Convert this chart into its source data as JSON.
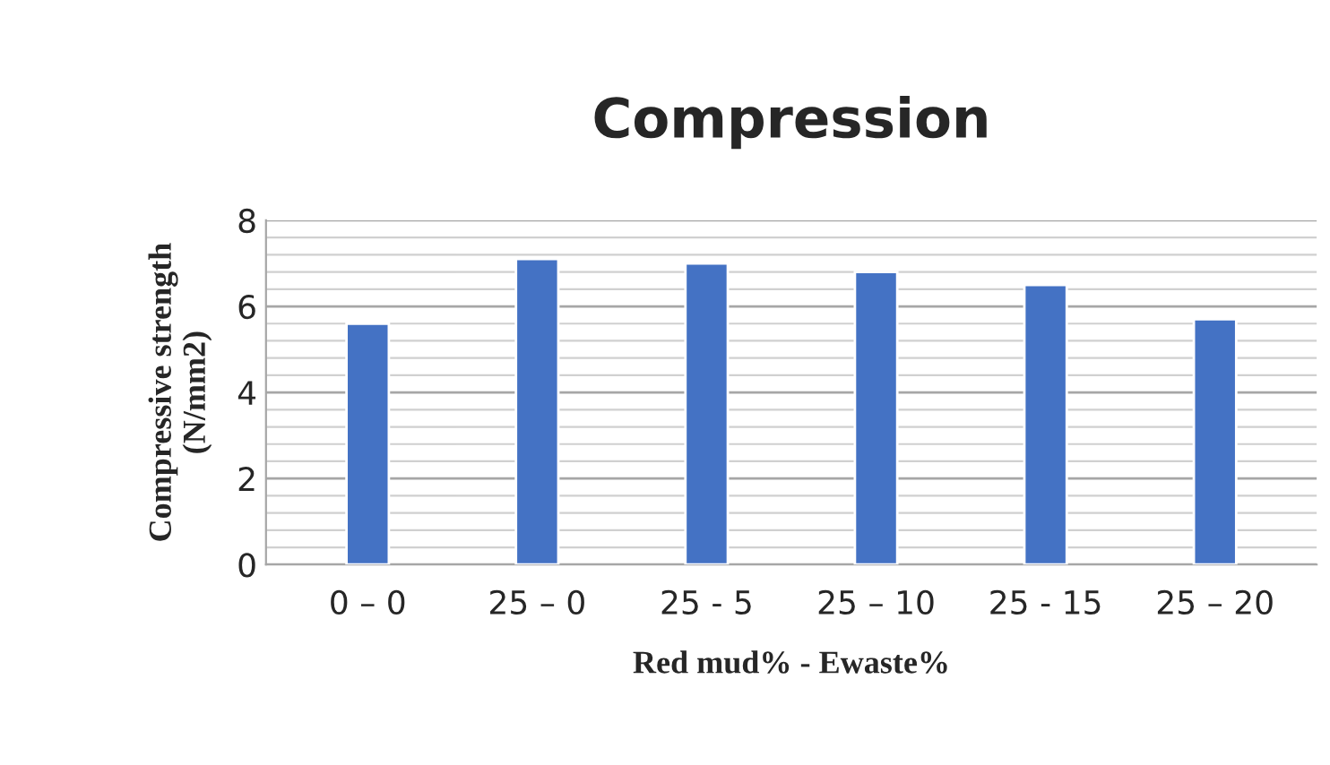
{
  "chart_data": {
    "type": "bar",
    "title": "Compression",
    "xlabel": "Red mud% - Ewaste%",
    "ylabel": "Compressive strength\n(N/mm2)",
    "categories": [
      "0 – 0",
      "25 – 0",
      "25 - 5",
      "25 – 10",
      "25 - 15",
      "25 – 20"
    ],
    "values": [
      5.6,
      7.1,
      7.0,
      6.8,
      6.5,
      5.7
    ],
    "color": "#4472c4",
    "ylim": [
      0,
      8
    ],
    "yticks": [
      0,
      2,
      4,
      6,
      8
    ],
    "grid": "y"
  }
}
